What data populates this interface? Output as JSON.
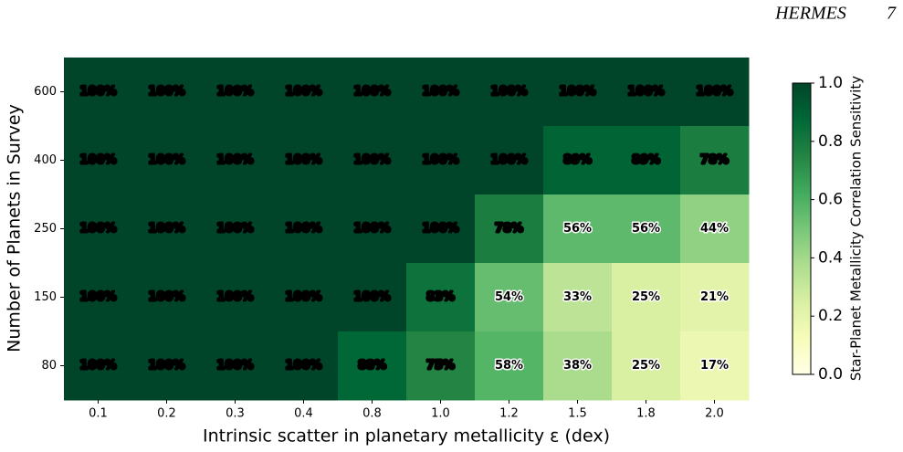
{
  "page_header": {
    "running_title": "HERMES",
    "page_number": "7"
  },
  "chart_data": {
    "type": "heatmap",
    "x_label": "Intrinsic scatter in planetary metallicity ε (dex)",
    "y_label": "Number of Planets in Survey",
    "colorbar_label": "Star-Planet Metallicity Correlation Sensitivity",
    "categories": [
      "0.1",
      "0.2",
      "0.3",
      "0.4",
      "0.8",
      "1.0",
      "1.2",
      "1.5",
      "1.8",
      "2.0"
    ],
    "rows": [
      "600",
      "400",
      "250",
      "150",
      "80"
    ],
    "values": [
      [
        1,
        1,
        1,
        1,
        1,
        1,
        1,
        1,
        1,
        1
      ],
      [
        1,
        1,
        1,
        1,
        1,
        1,
        1,
        0.89,
        0.89,
        0.78
      ],
      [
        1,
        1,
        1,
        1,
        1,
        1,
        0.78,
        0.56,
        0.56,
        0.44
      ],
      [
        1,
        1,
        1,
        1,
        1,
        0.83,
        0.54,
        0.33,
        0.25,
        0.21
      ],
      [
        1,
        1,
        1,
        1,
        0.88,
        0.75,
        0.58,
        0.38,
        0.25,
        0.17
      ]
    ],
    "value_labels": [
      [
        "100%",
        "100%",
        "100%",
        "100%",
        "100%",
        "100%",
        "100%",
        "100%",
        "100%",
        "100%"
      ],
      [
        "100%",
        "100%",
        "100%",
        "100%",
        "100%",
        "100%",
        "100%",
        "89%",
        "89%",
        "78%"
      ],
      [
        "100%",
        "100%",
        "100%",
        "100%",
        "100%",
        "100%",
        "78%",
        "56%",
        "56%",
        "44%"
      ],
      [
        "100%",
        "100%",
        "100%",
        "100%",
        "100%",
        "83%",
        "54%",
        "33%",
        "25%",
        "21%"
      ],
      [
        "100%",
        "100%",
        "100%",
        "100%",
        "88%",
        "75%",
        "58%",
        "38%",
        "25%",
        "17%"
      ]
    ],
    "clim": [
      0,
      1
    ],
    "cticks": [
      {
        "value": 0,
        "label": "0.0"
      },
      0.2,
      0.4,
      0.6,
      0.8,
      {
        "value": 1,
        "label": "1.0"
      }
    ],
    "colormap": [
      "#ffffe5",
      "#f7fcb9",
      "#d9f0a3",
      "#addd8e",
      "#78c679",
      "#41ab5d",
      "#238443",
      "#006837",
      "#004529"
    ]
  }
}
